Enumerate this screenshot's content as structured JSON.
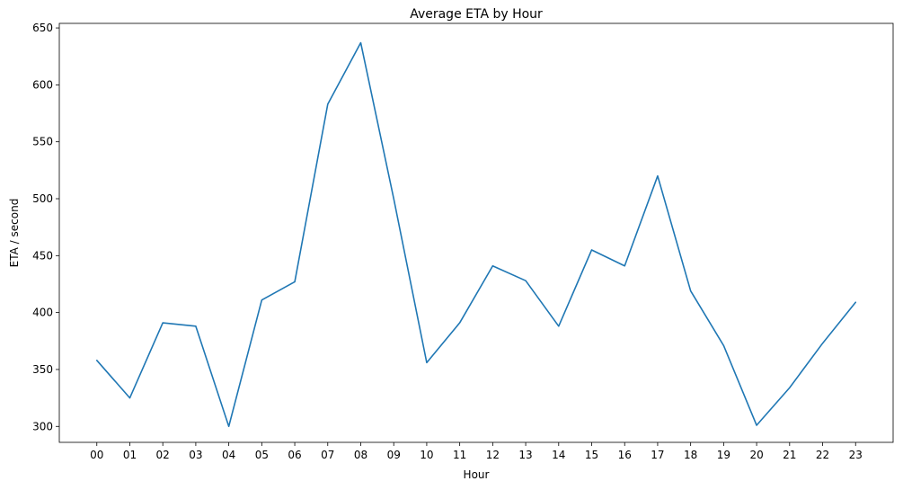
{
  "chart_data": {
    "type": "line",
    "title": "Average ETA by Hour",
    "xlabel": "Hour",
    "ylabel": "ETA / second",
    "categories": [
      "00",
      "01",
      "02",
      "03",
      "04",
      "05",
      "06",
      "07",
      "08",
      "09",
      "10",
      "11",
      "12",
      "13",
      "14",
      "15",
      "16",
      "17",
      "18",
      "19",
      "20",
      "21",
      "22",
      "23"
    ],
    "series": [
      {
        "values": [
          358,
          325,
          391,
          388,
          300,
          411,
          427,
          583,
          637,
          500,
          356,
          391,
          441,
          428,
          388,
          455,
          441,
          520,
          419,
          371,
          301,
          334,
          373,
          409
        ],
        "color": "#1f77b4"
      }
    ],
    "yticks": [
      300,
      350,
      400,
      450,
      500,
      550,
      600,
      650
    ],
    "ylim": [
      286,
      654
    ],
    "grid": false,
    "legend": "none"
  }
}
